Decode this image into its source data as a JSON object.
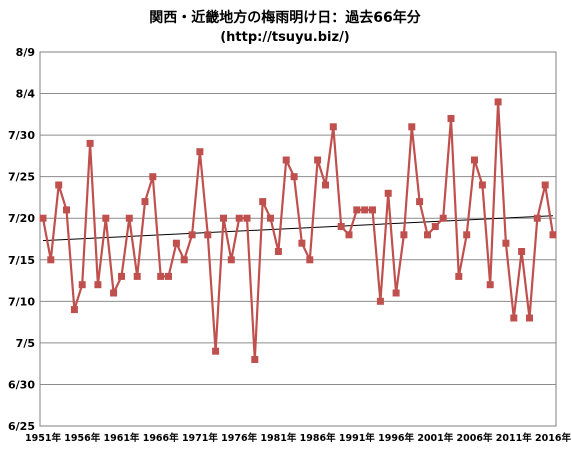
{
  "chart_data": {
    "type": "line",
    "title": "関西・近畿地方の梅雨明け日：過去66年分",
    "subtitle": "(http://tsuyu.biz/)",
    "xlabel": "",
    "ylabel": "",
    "x": [
      1951,
      1952,
      1953,
      1954,
      1955,
      1956,
      1957,
      1958,
      1959,
      1960,
      1961,
      1962,
      1963,
      1964,
      1965,
      1966,
      1967,
      1968,
      1969,
      1970,
      1971,
      1972,
      1973,
      1974,
      1975,
      1976,
      1977,
      1978,
      1979,
      1980,
      1981,
      1982,
      1983,
      1984,
      1985,
      1986,
      1987,
      1988,
      1989,
      1990,
      1991,
      1992,
      1993,
      1994,
      1995,
      1996,
      1997,
      1998,
      1999,
      2000,
      2001,
      2002,
      2003,
      2004,
      2005,
      2006,
      2007,
      2008,
      2009,
      2010,
      2011,
      2012,
      2013,
      2014,
      2015,
      2016
    ],
    "xticks": [
      "1951年",
      "1956年",
      "1961年",
      "1966年",
      "1971年",
      "1976年",
      "1981年",
      "1986年",
      "1991年",
      "1996年",
      "2001年",
      "2006年",
      "2011年",
      "2016年"
    ],
    "yticks": [
      "6/25",
      "6/30",
      "7/5",
      "7/10",
      "7/15",
      "7/20",
      "7/25",
      "7/30",
      "8/4",
      "8/9"
    ],
    "ylim_days_since_jun25": [
      0,
      45
    ],
    "series": [
      {
        "name": "",
        "color": "#c0504d",
        "marker": "square",
        "values": [
          "7/20",
          "7/15",
          "7/24",
          "7/21",
          "7/9",
          "7/12",
          "7/29",
          "7/12",
          "7/20",
          "7/11",
          "7/13",
          "7/20",
          "7/13",
          "7/22",
          "7/25",
          "7/13",
          "7/13",
          "7/17",
          "7/15",
          "7/18",
          "7/28",
          "7/18",
          "7/4",
          "7/20",
          "7/15",
          "7/20",
          "7/20",
          "7/3",
          "7/22",
          "7/20",
          "7/16",
          "7/27",
          "7/25",
          "7/17",
          "7/15",
          "7/27",
          "7/24",
          "7/31",
          "7/19",
          "7/18",
          "7/21",
          "7/21",
          "7/21",
          "7/10",
          "7/23",
          "7/11",
          "7/18",
          "7/31",
          "7/22",
          "7/18",
          "7/19",
          "7/20",
          "8/1",
          "7/13",
          "7/18",
          "7/27",
          "7/24",
          "7/12",
          "8/3",
          "7/17",
          "7/8",
          "7/16",
          "7/8",
          "7/20",
          "7/24",
          "7/18"
        ]
      }
    ],
    "trendline": {
      "color": "#000000",
      "from": [
        1951,
        "7/17.3"
      ],
      "to": [
        2016,
        "7/20.3"
      ]
    },
    "grid": true,
    "legend": "none"
  }
}
